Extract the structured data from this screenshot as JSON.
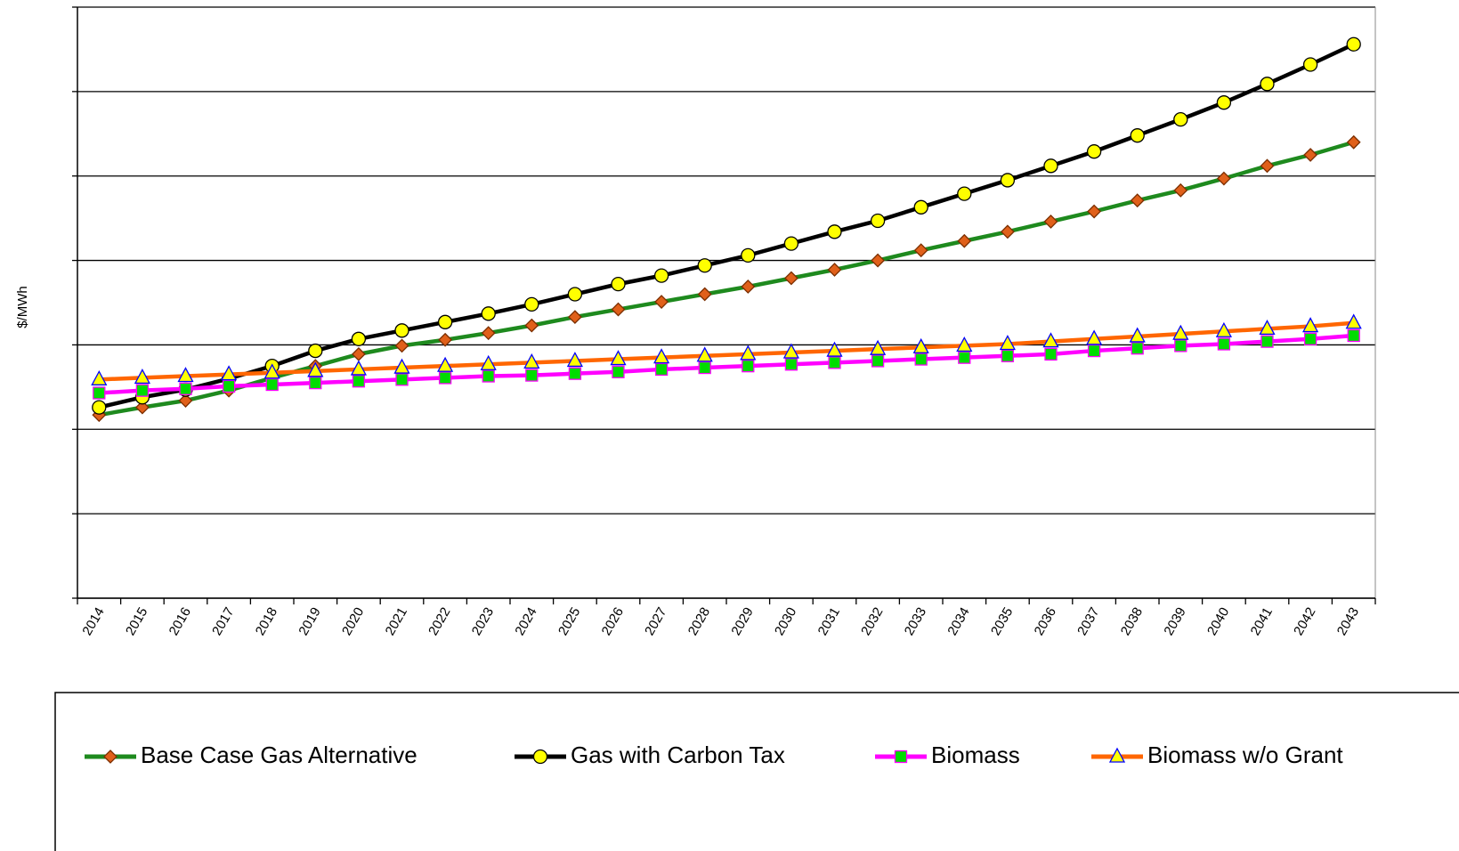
{
  "chart_data": {
    "type": "line",
    "y_label": "$/MWh",
    "categories": [
      "2014",
      "2015",
      "2016",
      "2017",
      "2018",
      "2019",
      "2020",
      "2021",
      "2022",
      "2023",
      "2024",
      "2025",
      "2026",
      "2027",
      "2028",
      "2029",
      "2030",
      "2031",
      "2032",
      "2033",
      "2034",
      "2035",
      "2036",
      "2037",
      "2038",
      "2039",
      "2040",
      "2041",
      "2042",
      "2043"
    ],
    "ylim": [
      0,
      7
    ],
    "yticks": [
      0,
      1,
      2,
      3,
      4,
      5,
      6,
      7
    ],
    "grid": true,
    "series": [
      {
        "name": "Base Case Gas Alternative",
        "color": "#1e8a1e",
        "marker": "diamond",
        "marker_color": "#e0601a",
        "values": [
          2.17,
          2.26,
          2.34,
          2.46,
          2.61,
          2.75,
          2.89,
          2.99,
          3.06,
          3.14,
          3.23,
          3.33,
          3.42,
          3.51,
          3.6,
          3.69,
          3.79,
          3.89,
          4.0,
          4.12,
          4.23,
          4.34,
          4.46,
          4.58,
          4.71,
          4.83,
          4.97,
          5.12,
          5.25,
          5.4
        ]
      },
      {
        "name": "Gas with Carbon Tax",
        "color": "#000000",
        "marker": "circle",
        "marker_color": "#ffff00",
        "values": [
          2.26,
          2.38,
          2.47,
          2.6,
          2.75,
          2.93,
          3.07,
          3.17,
          3.27,
          3.37,
          3.48,
          3.6,
          3.72,
          3.82,
          3.94,
          4.06,
          4.2,
          4.34,
          4.47,
          4.63,
          4.79,
          4.95,
          5.12,
          5.29,
          5.48,
          5.67,
          5.87,
          6.09,
          6.32,
          6.56
        ]
      },
      {
        "name": "Biomass",
        "color": "#ff00ff",
        "marker": "square",
        "marker_color": "#00dd00",
        "values": [
          2.43,
          2.46,
          2.48,
          2.51,
          2.53,
          2.55,
          2.57,
          2.59,
          2.61,
          2.63,
          2.64,
          2.66,
          2.68,
          2.71,
          2.73,
          2.75,
          2.77,
          2.79,
          2.81,
          2.83,
          2.85,
          2.87,
          2.89,
          2.93,
          2.96,
          2.99,
          3.01,
          3.04,
          3.07,
          3.11
        ]
      },
      {
        "name": "Biomass w/o Grant",
        "color": "#ff6600",
        "marker": "triangle",
        "marker_color": "#ffff00",
        "values": [
          2.59,
          2.61,
          2.63,
          2.65,
          2.67,
          2.69,
          2.71,
          2.73,
          2.75,
          2.77,
          2.79,
          2.81,
          2.83,
          2.85,
          2.87,
          2.89,
          2.91,
          2.93,
          2.95,
          2.97,
          2.99,
          3.01,
          3.04,
          3.07,
          3.1,
          3.13,
          3.16,
          3.19,
          3.22,
          3.26
        ]
      }
    ]
  }
}
